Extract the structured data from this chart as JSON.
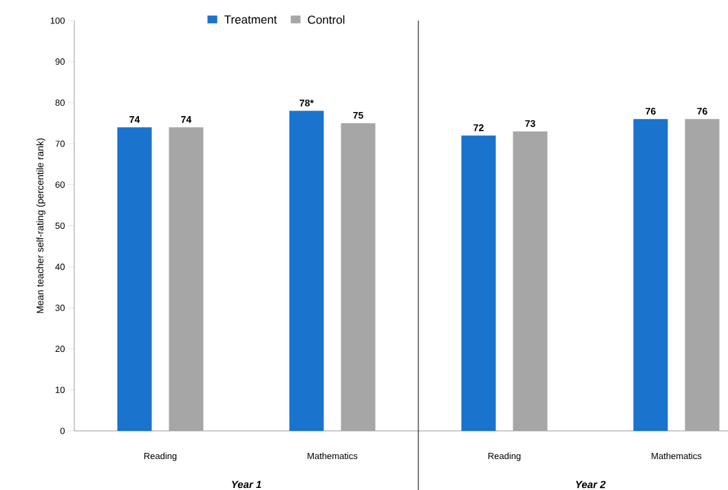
{
  "chart_data": {
    "type": "bar",
    "ylabel": "Mean teacher self-rating (percentile rank)",
    "categories": [
      "Reading",
      "Mathematics",
      "Reading",
      "Mathematics"
    ],
    "series": [
      {
        "name": "Treatment",
        "color": "#1a73cc",
        "values": [
          74,
          78,
          72,
          76
        ],
        "value_labels": [
          "74",
          "78*",
          "72",
          "76"
        ]
      },
      {
        "name": "Control",
        "color": "#a6a6a6",
        "values": [
          74,
          75,
          73,
          76
        ],
        "value_labels": [
          "74",
          "75",
          "73",
          "76"
        ]
      }
    ],
    "ylim": [
      0,
      100
    ],
    "yticks": [
      0,
      10,
      20,
      30,
      40,
      50,
      60,
      70,
      80,
      90,
      100
    ],
    "annotations": [
      "Year 1",
      "Year 2"
    ],
    "legend": "top",
    "grid": false
  }
}
